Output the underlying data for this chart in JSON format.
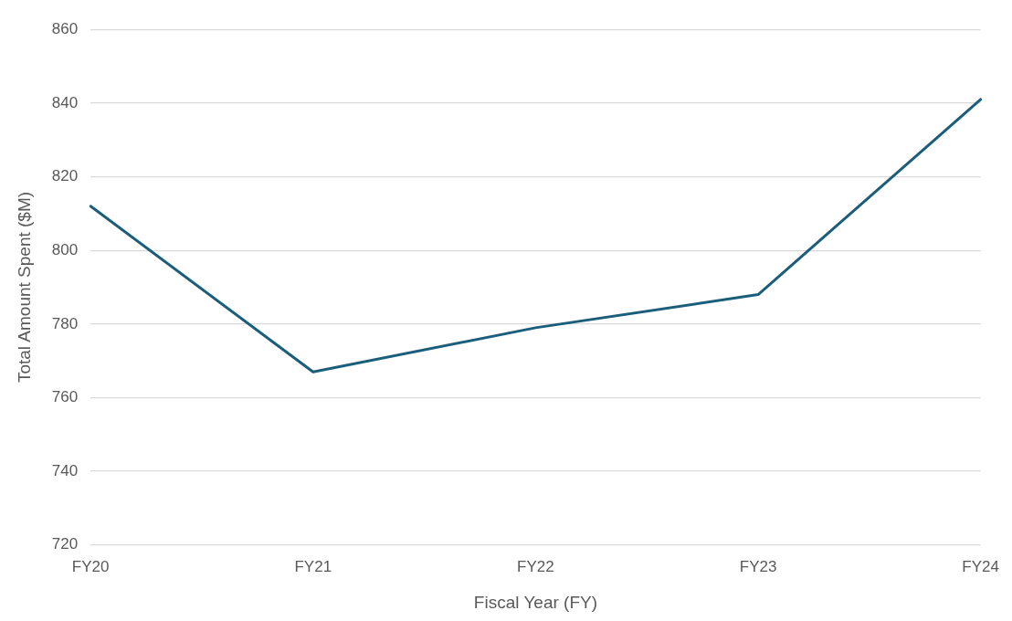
{
  "chart_data": {
    "type": "line",
    "xlabel": "Fiscal Year (FY)",
    "ylabel": "Total Amount Spent ($M)",
    "categories": [
      "FY20",
      "FY21",
      "FY22",
      "FY23",
      "FY24"
    ],
    "series": [
      {
        "color": "#1b5e7b",
        "values": [
          812,
          767,
          779,
          788,
          841
        ]
      }
    ],
    "ylim": [
      720,
      860
    ],
    "yticks": [
      720,
      740,
      760,
      780,
      800,
      820,
      840,
      860
    ],
    "grid": "y",
    "legend": false,
    "marker": "none",
    "line_style": "solid"
  }
}
